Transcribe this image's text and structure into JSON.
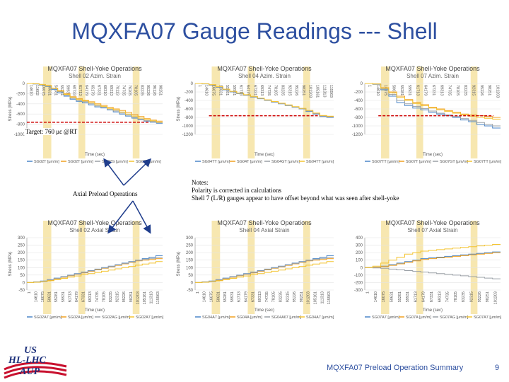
{
  "slide": {
    "title": "MQXFA07 Gauge Readings --- Shell",
    "footer": "MQXFA07 Preload Operation Summary",
    "page_number": "9",
    "annotations": {
      "target": "Target: 760 με @RT",
      "axial_preload": "Axial Preload Operations",
      "notes": [
        "Notes:",
        "Polarity is corrected in calculations",
        "Shell 7 (L/R) gauges appear to have offset beyond what was seen after shell-yoke"
      ]
    },
    "logo": {
      "line1": "US",
      "line2": "HL-LHC",
      "line3": "AUP"
    },
    "colors": {
      "title": "#2d4fa0",
      "highlight": "#f7e7b0",
      "target_line": "#cc0000",
      "arrow": "#1f3d8c"
    }
  },
  "chart_data": [
    {
      "type": "line",
      "title": "MQXFA07 Shell-Yoke Operations",
      "subtitle": "Shell 02 Azim. Strain",
      "ylabel": "Stress (MPa)",
      "xlabel": "Time (sec)",
      "ylim": [
        -1000,
        0
      ],
      "yticks": [
        0,
        -200,
        -400,
        -600,
        -800,
        -1000
      ],
      "x_ticks": [
        "14610",
        "11602",
        "16075",
        "50631",
        "54081",
        "55281",
        "59931",
        "60733",
        "61713",
        "64179",
        "65179",
        "67331",
        "68310",
        "69313",
        "70113",
        "74735",
        "76205",
        "78105",
        "83235",
        "95226",
        "96126",
        "98251"
      ],
      "legend": [
        "SG02T [μm/m]",
        "SG02T [μm/m]",
        "SG02G [μm/m]",
        "SG02T [μm/m]"
      ],
      "series": [
        {
          "color": "#4a86c8",
          "values": [
            0,
            -10,
            -30,
            -60,
            -120,
            -180,
            -250,
            -310,
            -350,
            -380,
            -420,
            -460,
            -480,
            -520,
            -560,
            -600,
            -640,
            -680,
            -710,
            -740,
            -760,
            -780
          ]
        },
        {
          "color": "#f0a020",
          "values": [
            0,
            -5,
            -20,
            -40,
            -90,
            -140,
            -200,
            -260,
            -300,
            -330,
            -360,
            -400,
            -430,
            -470,
            -500,
            -530,
            -570,
            -610,
            -650,
            -690,
            -720,
            -740
          ]
        },
        {
          "color": "#9aa0a6",
          "values": [
            0,
            -8,
            -25,
            -50,
            -100,
            -160,
            -230,
            -290,
            -330,
            -360,
            -400,
            -440,
            -470,
            -510,
            -540,
            -580,
            -620,
            -660,
            -700,
            -730,
            -750,
            -770
          ]
        },
        {
          "color": "#f4c430",
          "values": [
            0,
            -6,
            -22,
            -45,
            -95,
            -150,
            -215,
            -275,
            -315,
            -345,
            -380,
            -420,
            -450,
            -490,
            -520,
            -560,
            -600,
            -640,
            -680,
            -710,
            -735,
            -760
          ]
        }
      ]
    },
    {
      "type": "line",
      "title": "MQXFA07 Shell-Yoke Operations",
      "subtitle": "Shell 04 Azim. Strain",
      "ylabel": "Stress (MPa)",
      "xlabel": "Time (sec)",
      "ylim": [
        -1200,
        0
      ],
      "yticks": [
        0,
        -200,
        -400,
        -600,
        -800,
        -1000,
        -1200
      ],
      "x_ticks": [
        "1",
        "14610",
        "16075",
        "50631",
        "55281",
        "59931",
        "61713",
        "64179",
        "67331",
        "69313",
        "74735",
        "78105",
        "83235",
        "92315",
        "95226",
        "98251",
        "101203",
        "105161",
        "111313",
        "115563"
      ],
      "legend": [
        "SG04TT [μm/m]",
        "SG04T [μm/m]",
        "SG04GT [μm/m]",
        "SG04TT [μm/m]"
      ],
      "series": [
        {
          "color": "#4a86c8",
          "values": [
            0,
            -10,
            -40,
            -90,
            -150,
            -200,
            -240,
            -280,
            -320,
            -360,
            -400,
            -440,
            -480,
            -520,
            -560,
            -600,
            -660,
            -720,
            -780,
            -800
          ]
        },
        {
          "color": "#f0a020",
          "values": [
            0,
            -8,
            -30,
            -80,
            -140,
            -190,
            -230,
            -270,
            -310,
            -350,
            -390,
            -430,
            -470,
            -510,
            -550,
            -590,
            -640,
            -700,
            -760,
            -780
          ]
        },
        {
          "color": "#9aa0a6",
          "values": [
            0,
            -9,
            -35,
            -85,
            -145,
            -195,
            -235,
            -275,
            -315,
            -355,
            -395,
            -435,
            -475,
            -515,
            -555,
            -595,
            -650,
            -710,
            -770,
            -790
          ]
        },
        {
          "color": "#f4c430",
          "values": [
            0,
            -7,
            -28,
            -75,
            -135,
            -185,
            -225,
            -265,
            -305,
            -345,
            -385,
            -425,
            -465,
            -505,
            -545,
            -585,
            -635,
            -695,
            -755,
            -770
          ]
        }
      ]
    },
    {
      "type": "line",
      "title": "MQXFA07 Shell-Yoke Operations",
      "subtitle": "Shell 07 Azim. Strain",
      "ylabel": "",
      "xlabel": "Time (sec)",
      "ylim": [
        -1200,
        0
      ],
      "yticks": [
        0,
        -200,
        -400,
        -600,
        -800,
        -1000,
        -1200
      ],
      "x_ticks": [
        "1",
        "14610",
        "16075",
        "50631",
        "55281",
        "59931",
        "61713",
        "64179",
        "67331",
        "69313",
        "74735",
        "78105",
        "83235",
        "92315",
        "95226",
        "98251",
        "101203"
      ],
      "legend": [
        "SG07TT [μm/m]",
        "SG07T [μm/m]",
        "SG07GT [μm/m]",
        "SG07TT [μm/m]"
      ],
      "series": [
        {
          "color": "#4a86c8",
          "values": [
            0,
            -20,
            -150,
            -300,
            -450,
            -520,
            -580,
            -620,
            -680,
            -720,
            -760,
            -800,
            -860,
            -900,
            -960,
            -1000,
            -1050
          ]
        },
        {
          "color": "#f0a020",
          "values": [
            0,
            -10,
            -100,
            -200,
            -300,
            -380,
            -450,
            -500,
            -560,
            -600,
            -640,
            -680,
            -720,
            -740,
            -760,
            -780,
            -800
          ]
        },
        {
          "color": "#9aa0a6",
          "values": [
            0,
            -15,
            -130,
            -260,
            -400,
            -480,
            -540,
            -590,
            -650,
            -700,
            -740,
            -780,
            -830,
            -870,
            -920,
            -960,
            -1000
          ]
        },
        {
          "color": "#f4c430",
          "values": [
            0,
            -12,
            -110,
            -220,
            -330,
            -400,
            -470,
            -520,
            -580,
            -620,
            -660,
            -700,
            -740,
            -770,
            -800,
            -820,
            -840
          ]
        }
      ]
    },
    {
      "type": "line",
      "title": "MQXFA07 Shell-Yoke Operations",
      "subtitle": "Shell 02 Axial Strain",
      "ylabel": "Stress (MPa)",
      "xlabel": "Time (sec)",
      "ylim": [
        -50,
        300
      ],
      "yticks": [
        300,
        250,
        200,
        150,
        100,
        50,
        0,
        -50
      ],
      "x_ticks": [
        "1",
        "14610",
        "16075",
        "50631",
        "55281",
        "59931",
        "61713",
        "64179",
        "67331",
        "69313",
        "74735",
        "78105",
        "83235",
        "92315",
        "95226",
        "98251",
        "101203",
        "105161",
        "111313",
        "115563"
      ],
      "legend": [
        "SG02A7 [μm/m]",
        "SG02A [μm/m]",
        "SG02AG [μm/m]",
        "SG02A7 [μm/m]"
      ],
      "series": [
        {
          "color": "#4a86c8",
          "values": [
            0,
            5,
            10,
            20,
            30,
            40,
            50,
            60,
            70,
            80,
            90,
            100,
            110,
            120,
            130,
            140,
            150,
            160,
            170,
            180
          ]
        },
        {
          "color": "#f0a020",
          "values": [
            0,
            3,
            8,
            15,
            25,
            35,
            45,
            55,
            65,
            75,
            85,
            95,
            105,
            115,
            125,
            135,
            145,
            150,
            155,
            160
          ]
        },
        {
          "color": "#9aa0a6",
          "values": [
            0,
            4,
            9,
            18,
            28,
            38,
            48,
            58,
            68,
            78,
            88,
            98,
            108,
            118,
            128,
            138,
            148,
            155,
            162,
            170
          ]
        },
        {
          "color": "#f4c430",
          "values": [
            0,
            2,
            6,
            12,
            20,
            28,
            36,
            44,
            52,
            60,
            68,
            76,
            84,
            92,
            100,
            108,
            116,
            124,
            130,
            140
          ]
        }
      ]
    },
    {
      "type": "line",
      "title": "MQXFA07 Shell-Yoke Operations",
      "subtitle": "Shell 04 Axial Strain",
      "ylabel": "Stress (MPa)",
      "xlabel": "Time (sec)",
      "ylim": [
        -50,
        300
      ],
      "yticks": [
        300,
        250,
        200,
        150,
        100,
        50,
        0,
        -50
      ],
      "x_ticks": [
        "1",
        "14610",
        "16075",
        "50631",
        "55281",
        "59931",
        "61713",
        "64179",
        "67331",
        "69313",
        "74735",
        "78105",
        "83235",
        "92315",
        "95226",
        "98251",
        "101203",
        "105161",
        "111313",
        "115563"
      ],
      "legend": [
        "SG04A7 [μm/m]",
        "SG04A [μm/m]",
        "SG04A67 [μm/m]",
        "SG04A7 [μm/m]"
      ],
      "series": [
        {
          "color": "#4a86c8",
          "values": [
            0,
            5,
            10,
            20,
            30,
            40,
            50,
            60,
            70,
            80,
            90,
            100,
            110,
            120,
            130,
            140,
            150,
            160,
            170,
            180
          ]
        },
        {
          "color": "#f0a020",
          "values": [
            0,
            3,
            8,
            15,
            25,
            35,
            45,
            55,
            65,
            75,
            85,
            95,
            105,
            115,
            125,
            135,
            145,
            150,
            155,
            160
          ]
        },
        {
          "color": "#9aa0a6",
          "values": [
            0,
            4,
            9,
            18,
            28,
            38,
            48,
            58,
            68,
            78,
            88,
            98,
            108,
            118,
            128,
            138,
            148,
            155,
            162,
            170
          ]
        },
        {
          "color": "#f4c430",
          "values": [
            0,
            2,
            6,
            12,
            20,
            28,
            36,
            44,
            52,
            60,
            68,
            76,
            84,
            92,
            100,
            108,
            116,
            124,
            130,
            140
          ]
        }
      ]
    },
    {
      "type": "line",
      "title": "MQXFA07 Shell-Yoke Operations",
      "subtitle": "Shell 07 Axial Strain",
      "ylabel": "",
      "xlabel": "Time (sec)",
      "ylim": [
        -300,
        400
      ],
      "yticks": [
        400,
        300,
        200,
        100,
        0,
        -100,
        -200,
        -300
      ],
      "x_ticks": [
        "1",
        "14610",
        "16075",
        "50631",
        "55281",
        "59931",
        "61713",
        "64179",
        "67331",
        "69313",
        "74735",
        "78105",
        "83235",
        "92315",
        "95226",
        "98251",
        "101203"
      ],
      "legend": [
        "SG07A7 [μm/m]",
        "SG07A [μm/m]",
        "SG07AG [μm/m]",
        "SG07A7 [μm/m]"
      ],
      "series": [
        {
          "color": "#4a86c8",
          "values": [
            0,
            5,
            20,
            40,
            60,
            80,
            100,
            120,
            130,
            140,
            150,
            160,
            170,
            180,
            190,
            200,
            210
          ]
        },
        {
          "color": "#f0a020",
          "values": [
            0,
            3,
            15,
            30,
            50,
            70,
            90,
            110,
            120,
            130,
            140,
            150,
            160,
            170,
            180,
            190,
            200
          ]
        },
        {
          "color": "#9aa0a6",
          "values": [
            0,
            -5,
            -10,
            -20,
            -30,
            -40,
            -50,
            -60,
            -70,
            -80,
            -90,
            -100,
            -110,
            -120,
            -130,
            -140,
            -150
          ]
        },
        {
          "color": "#f4c430",
          "values": [
            0,
            20,
            60,
            100,
            140,
            180,
            200,
            220,
            230,
            240,
            250,
            260,
            270,
            280,
            290,
            300,
            310
          ]
        }
      ]
    }
  ]
}
